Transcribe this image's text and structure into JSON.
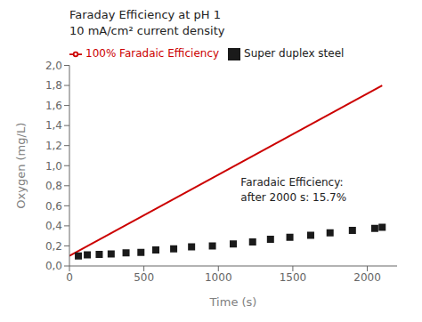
{
  "chart_data": {
    "type": "scatter",
    "title": "Faraday Efficiency at pH 1",
    "subtitle": "10 mA/cm² current density",
    "xlabel": "Time (s)",
    "ylabel": "Oxygen (mg/L)",
    "xlim": [
      0,
      2200
    ],
    "xticks": [
      0,
      500,
      1000,
      1500,
      2000
    ],
    "ylim": [
      0.0,
      2.0
    ],
    "yticks": [
      {
        "value": 0.0,
        "label": "0,0"
      },
      {
        "value": 0.2,
        "label": "0,2"
      },
      {
        "value": 0.4,
        "label": "0,4"
      },
      {
        "value": 0.6,
        "label": "0,6"
      },
      {
        "value": 0.8,
        "label": "0,8"
      },
      {
        "value": 1.0,
        "label": "1,0"
      },
      {
        "value": 1.2,
        "label": "1,2"
      },
      {
        "value": 1.4,
        "label": "1,4"
      },
      {
        "value": 1.6,
        "label": "1,6"
      },
      {
        "value": 1.8,
        "label": "1,8"
      },
      {
        "value": 2.0,
        "label": "2,0"
      }
    ],
    "series": [
      {
        "name": "Super duplex steel",
        "type": "scatter",
        "marker": "square",
        "color": "#1a1a1a",
        "x": [
          60,
          120,
          200,
          280,
          380,
          480,
          580,
          700,
          820,
          960,
          1100,
          1230,
          1350,
          1480,
          1620,
          1750,
          1900,
          2050,
          2100
        ],
        "values": [
          0.1,
          0.11,
          0.115,
          0.12,
          0.13,
          0.135,
          0.16,
          0.17,
          0.19,
          0.2,
          0.22,
          0.24,
          0.265,
          0.285,
          0.305,
          0.33,
          0.355,
          0.375,
          0.385
        ]
      },
      {
        "name": "100% Faradaic Efficiency",
        "type": "line",
        "color": "#cc0000",
        "x": [
          0,
          2100
        ],
        "values": [
          0.1,
          1.8
        ]
      }
    ],
    "annotations": [
      {
        "text": "Faradaic Efficiency:\nafter 2000 s: 15.7%",
        "x": 1150,
        "y": 0.88
      }
    ],
    "legend": "upper left",
    "grid": false
  }
}
